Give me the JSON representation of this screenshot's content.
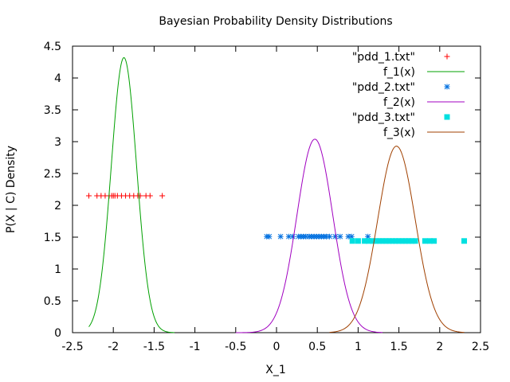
{
  "chart_data": {
    "type": "scatter",
    "title": "Bayesian Probability Density Distributions",
    "xlabel": "X_1",
    "ylabel": "P(X | C) Density",
    "xlim": [
      -2.5,
      2.5
    ],
    "ylim": [
      0,
      4.5
    ],
    "x_ticks": [
      "-2.5",
      "-2",
      "-1.5",
      "-1",
      "-0.5",
      "0",
      "0.5",
      "1",
      "1.5",
      "2",
      "2.5"
    ],
    "y_ticks": [
      "0",
      "0.5",
      "1",
      "1.5",
      "2",
      "2.5",
      "3",
      "3.5",
      "4",
      "4.5"
    ],
    "x_tick_values": [
      -2.5,
      -2,
      -1.5,
      -1,
      -0.5,
      0,
      0.5,
      1,
      1.5,
      2,
      2.5
    ],
    "y_tick_values": [
      0,
      0.5,
      1,
      1.5,
      2,
      2.5,
      3,
      3.5,
      4,
      4.5
    ],
    "grid": false,
    "legend_position": "top-right",
    "series": [
      {
        "name": "\"pdd_1.txt\"",
        "kind": "points",
        "marker": "plus",
        "color": "#ff0000",
        "y": 2.15,
        "x": [
          -2.3,
          -2.2,
          -2.15,
          -2.1,
          -2.05,
          -2.02,
          -2.0,
          -1.98,
          -1.95,
          -1.9,
          -1.85,
          -1.8,
          -1.75,
          -1.7,
          -1.67,
          -1.6,
          -1.55,
          -1.4
        ]
      },
      {
        "name": "f_1(x)",
        "kind": "curve",
        "color": "#00a000",
        "mean": -1.87,
        "peak": 4.32,
        "sd": 0.155,
        "xrange": [
          -2.3,
          -1.25
        ]
      },
      {
        "name": "\"pdd_2.txt\"",
        "kind": "points",
        "marker": "star",
        "color": "#0070e0",
        "y": 1.51,
        "x": [
          -0.12,
          -0.09,
          0.05,
          0.15,
          0.2,
          0.27,
          0.3,
          0.33,
          0.36,
          0.4,
          0.43,
          0.46,
          0.49,
          0.52,
          0.55,
          0.58,
          0.61,
          0.65,
          0.72,
          0.78,
          0.88,
          0.92,
          1.12
        ]
      },
      {
        "name": "f_2(x)",
        "kind": "curve",
        "color": "#a000c0",
        "mean": 0.47,
        "peak": 3.04,
        "sd": 0.22,
        "xrange": [
          -0.5,
          1.3
        ]
      },
      {
        "name": "\"pdd_3.txt\"",
        "kind": "points",
        "marker": "square",
        "color": "#00e0e0",
        "y": 1.44,
        "x": [
          0.93,
          1.0,
          1.08,
          1.13,
          1.18,
          1.22,
          1.26,
          1.3,
          1.34,
          1.38,
          1.42,
          1.46,
          1.5,
          1.54,
          1.58,
          1.62,
          1.66,
          1.7,
          1.82,
          1.88,
          1.93,
          2.3
        ]
      },
      {
        "name": "f_3(x)",
        "kind": "curve",
        "color": "#a04000",
        "mean": 1.47,
        "peak": 2.93,
        "sd": 0.23,
        "xrange": [
          0.65,
          2.3
        ]
      }
    ]
  }
}
